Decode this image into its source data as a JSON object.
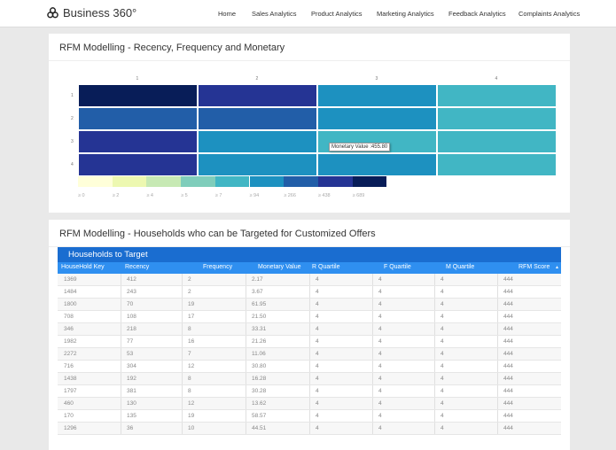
{
  "nav": {
    "brand": "Business 360°",
    "items": [
      "Home",
      "Sales Analytics",
      "Product Analytics",
      "Marketing Analytics",
      "Feedback Analytics",
      "Complaints Analytics"
    ]
  },
  "rfm_card": {
    "title": "RFM Modelling - Recency, Frequency and Monetary",
    "tooltip": "Monetary Value :455.80"
  },
  "chart_data": {
    "type": "heatmap",
    "x_categories": [
      "1",
      "2",
      "3",
      "4"
    ],
    "y_categories": [
      "1",
      "2",
      "3",
      "4"
    ],
    "color_bucket": [
      [
        8,
        7,
        5,
        4
      ],
      [
        6,
        6,
        5,
        4
      ],
      [
        7,
        5,
        4,
        4
      ],
      [
        7,
        5,
        5,
        4
      ]
    ],
    "legend": {
      "labels": [
        "≥ 0",
        "≥ 2",
        "≥ 4",
        "≥ 5",
        "≥ 7",
        "≥ 94",
        "≥ 266",
        "≥ 438",
        "≥ 689"
      ],
      "colors": [
        "#ffffd9",
        "#edf8b1",
        "#c7e9b4",
        "#7fcdbb",
        "#41b6c4",
        "#1d91c0",
        "#225ea8",
        "#253494",
        "#081d58"
      ]
    },
    "tooltip_value": 455.8
  },
  "target_card": {
    "title": "RFM Modelling - Households who can be Targeted for Customized Offers",
    "table_title": "Households to Target",
    "columns": [
      "HouseHold Key",
      "Recency",
      "Frequency",
      "Monetary Value",
      "R Quartile",
      "F Quartile",
      "M Quartile",
      "RFM Score"
    ],
    "rows": [
      [
        "1369",
        "412",
        "2",
        "2.17",
        "4",
        "4",
        "4",
        "444"
      ],
      [
        "1484",
        "243",
        "2",
        "3.67",
        "4",
        "4",
        "4",
        "444"
      ],
      [
        "1800",
        "70",
        "19",
        "61.95",
        "4",
        "4",
        "4",
        "444"
      ],
      [
        "708",
        "108",
        "17",
        "21.50",
        "4",
        "4",
        "4",
        "444"
      ],
      [
        "346",
        "218",
        "8",
        "33.31",
        "4",
        "4",
        "4",
        "444"
      ],
      [
        "1982",
        "77",
        "16",
        "21.26",
        "4",
        "4",
        "4",
        "444"
      ],
      [
        "2272",
        "53",
        "7",
        "11.06",
        "4",
        "4",
        "4",
        "444"
      ],
      [
        "716",
        "304",
        "12",
        "30.80",
        "4",
        "4",
        "4",
        "444"
      ],
      [
        "1438",
        "192",
        "8",
        "16.28",
        "4",
        "4",
        "4",
        "444"
      ],
      [
        "1797",
        "381",
        "8",
        "30.28",
        "4",
        "4",
        "4",
        "444"
      ],
      [
        "460",
        "130",
        "12",
        "13.62",
        "4",
        "4",
        "4",
        "444"
      ],
      [
        "170",
        "135",
        "19",
        "58.57",
        "4",
        "4",
        "4",
        "444"
      ],
      [
        "1296",
        "36",
        "10",
        "44.51",
        "4",
        "4",
        "4",
        "444"
      ]
    ]
  }
}
